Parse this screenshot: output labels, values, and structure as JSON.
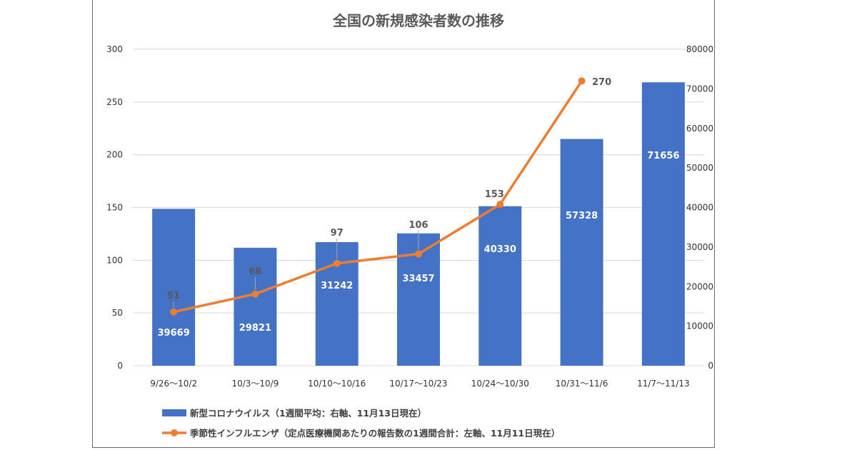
{
  "chart_data": {
    "type": "bar+line",
    "title": "全国の新規感染者数の推移",
    "categories": [
      "9/26～10/2",
      "10/3～10/9",
      "10/10～10/16",
      "10/17～10/23",
      "10/24～10/30",
      "10/31～11/6",
      "11/7～11/13"
    ],
    "series": [
      {
        "name": "新型コロナウイルス（1週間平均：右軸、11月13日現在）",
        "type": "bar",
        "axis": "right",
        "color": "#4472C4",
        "values": [
          39669,
          29821,
          31242,
          33457,
          40330,
          57328,
          71656
        ],
        "labels": [
          "39669",
          "29821",
          "31242",
          "33457",
          "40330",
          "57328",
          "71656"
        ]
      },
      {
        "name": "季節性インフルエンザ（定点医療機関あたりの報告数の1週間合計：左軸、11月11日現在）",
        "type": "line",
        "axis": "left",
        "color": "#ED7D31",
        "values": [
          51,
          68,
          97,
          106,
          153,
          270,
          null
        ],
        "labels": [
          "51",
          "68",
          "97",
          "106",
          "153",
          "270",
          ""
        ]
      }
    ],
    "left_axis": {
      "min": 0,
      "max": 300,
      "ticks": [
        "0",
        "50",
        "100",
        "150",
        "200",
        "250",
        "300"
      ]
    },
    "right_axis": {
      "min": 0,
      "max": 80000,
      "ticks": [
        "0",
        "10000",
        "20000",
        "30000",
        "40000",
        "50000",
        "60000",
        "70000",
        "80000"
      ]
    },
    "grid": true,
    "legend_position": "bottom"
  }
}
